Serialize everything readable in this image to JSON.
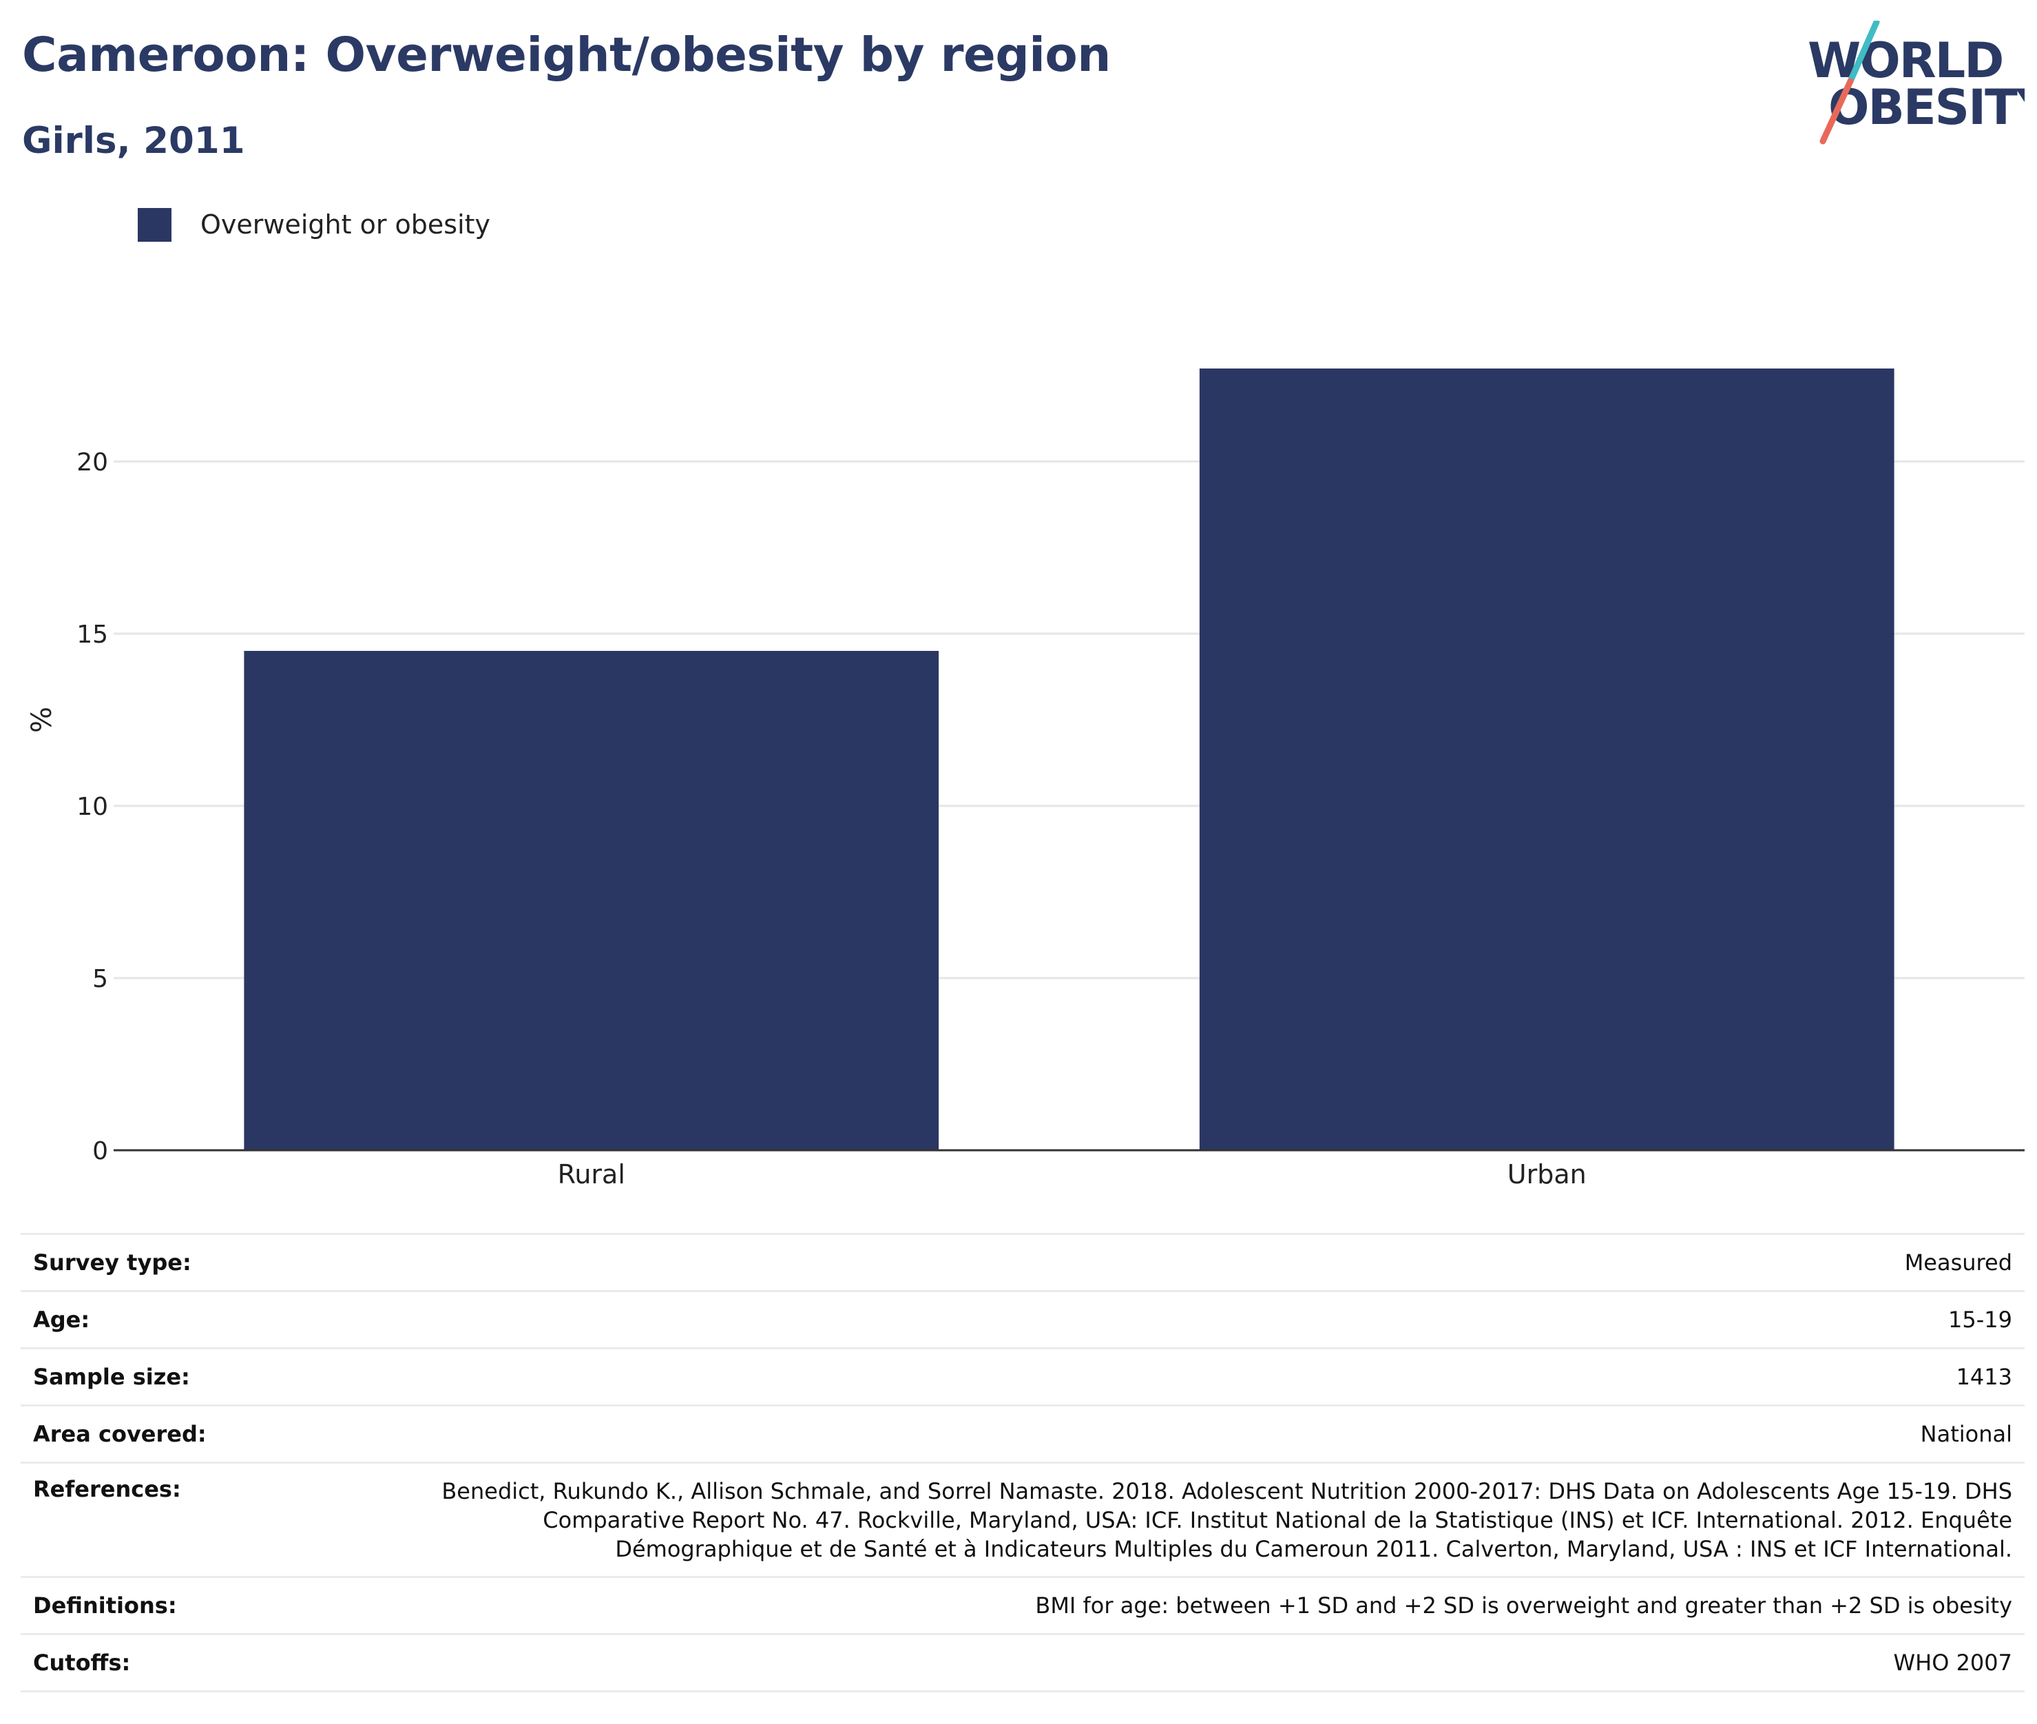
{
  "title": "Cameroon: Overweight/obesity by region",
  "subtitle": "Girls, 2011",
  "logo": {
    "line1": "WORLD",
    "line2": "OBESITY",
    "colors": {
      "text": "#2b3a64",
      "teal": "#3fbcc4",
      "coral": "#e8695a"
    }
  },
  "colors": {
    "bar": "#2b3763",
    "title": "#2b3a64",
    "grid": "#e6e6e6",
    "axis": "#333333"
  },
  "chart_data": {
    "type": "bar",
    "categories": [
      "Rural",
      "Urban"
    ],
    "series": [
      {
        "name": "Overweight or obesity",
        "values": [
          14.5,
          22.7
        ]
      }
    ],
    "ylabel": "%",
    "xlabel": "",
    "ylim": [
      0,
      25
    ],
    "yticks": [
      0,
      5,
      10,
      15,
      20
    ],
    "grid": true,
    "legend_position": "top-left"
  },
  "info": [
    {
      "key": "Survey type:",
      "value": "Measured"
    },
    {
      "key": "Age:",
      "value": "15-19"
    },
    {
      "key": "Sample size:",
      "value": "1413"
    },
    {
      "key": "Area covered:",
      "value": "National"
    },
    {
      "key": "References:",
      "value": "Benedict, Rukundo K., Allison Schmale, and Sorrel Namaste. 2018. Adolescent Nutrition 2000-2017: DHS Data on Adolescents Age 15-19. DHS Comparative Report No. 47. Rockville, Maryland, USA: ICF. Institut National de la Statistique (INS) et ICF. International. 2012. Enquête Démographique et de Santé et à Indicateurs Multiples du Cameroun 2011. Calverton, Maryland, USA : INS et ICF International."
    },
    {
      "key": "Definitions:",
      "value": "BMI for age: between +1 SD and +2 SD is overweight and greater than +2 SD is obesity"
    },
    {
      "key": "Cutoffs:",
      "value": "WHO 2007"
    }
  ]
}
